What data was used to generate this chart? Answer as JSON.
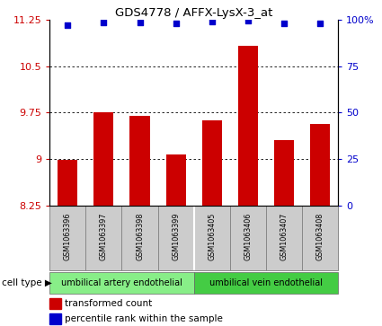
{
  "title": "GDS4778 / AFFX-LysX-3_at",
  "samples": [
    "GSM1063396",
    "GSM1063397",
    "GSM1063398",
    "GSM1063399",
    "GSM1063405",
    "GSM1063406",
    "GSM1063407",
    "GSM1063408"
  ],
  "red_values": [
    8.99,
    9.76,
    9.69,
    9.07,
    9.62,
    10.82,
    9.31,
    9.57
  ],
  "blue_values": [
    97,
    98.5,
    98.5,
    98,
    99,
    99.5,
    98.2,
    98.2
  ],
  "ylim_left": [
    8.25,
    11.25
  ],
  "ylim_right": [
    0,
    100
  ],
  "yticks_left": [
    8.25,
    9.0,
    9.75,
    10.5,
    11.25
  ],
  "yticks_right": [
    0,
    25,
    50,
    75,
    100
  ],
  "ytick_labels_left": [
    "8.25",
    "9",
    "9.75",
    "10.5",
    "11.25"
  ],
  "ytick_labels_right": [
    "0",
    "25",
    "50",
    "75",
    "100%"
  ],
  "bar_color": "#cc0000",
  "dot_color": "#0000cc",
  "cell_type_groups": [
    {
      "label": "umbilical artery endothelial",
      "start": 0,
      "end": 3,
      "color": "#88ee88"
    },
    {
      "label": "umbilical vein endothelial",
      "start": 4,
      "end": 7,
      "color": "#44cc44"
    }
  ],
  "cell_type_label": "cell type",
  "legend_red": "transformed count",
  "legend_blue": "percentile rank within the sample",
  "bar_bottom": 8.25
}
